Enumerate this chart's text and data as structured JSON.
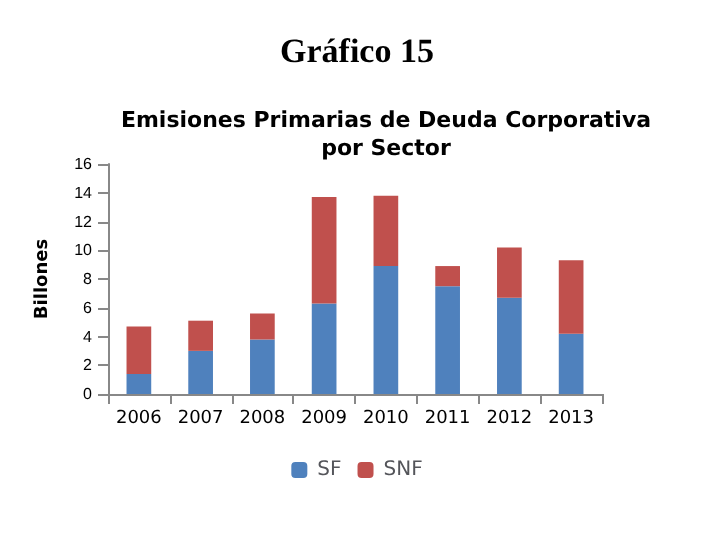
{
  "chart_data": {
    "type": "bar",
    "title": "Gráfico 15",
    "subtitle": "Emisiones Primarias de Deuda Corporativa\npor Sector",
    "ylabel": "Billones",
    "categories": [
      "2006",
      "2007",
      "2008",
      "2009",
      "2010",
      "2011",
      "2012",
      "2013"
    ],
    "stacked": true,
    "series": [
      {
        "name": "SF",
        "color": "#4f81bd",
        "values": [
          1.4,
          3.0,
          3.8,
          6.3,
          8.9,
          7.5,
          6.7,
          4.2
        ]
      },
      {
        "name": "SNF",
        "color": "#c0504d",
        "values": [
          3.3,
          2.1,
          1.8,
          7.4,
          4.9,
          1.4,
          3.5,
          5.1
        ]
      }
    ],
    "ylim": [
      0,
      16
    ],
    "yticks": [
      0,
      2,
      4,
      6,
      8,
      10,
      12,
      14,
      16
    ],
    "grid": false,
    "legend": "bottom"
  }
}
